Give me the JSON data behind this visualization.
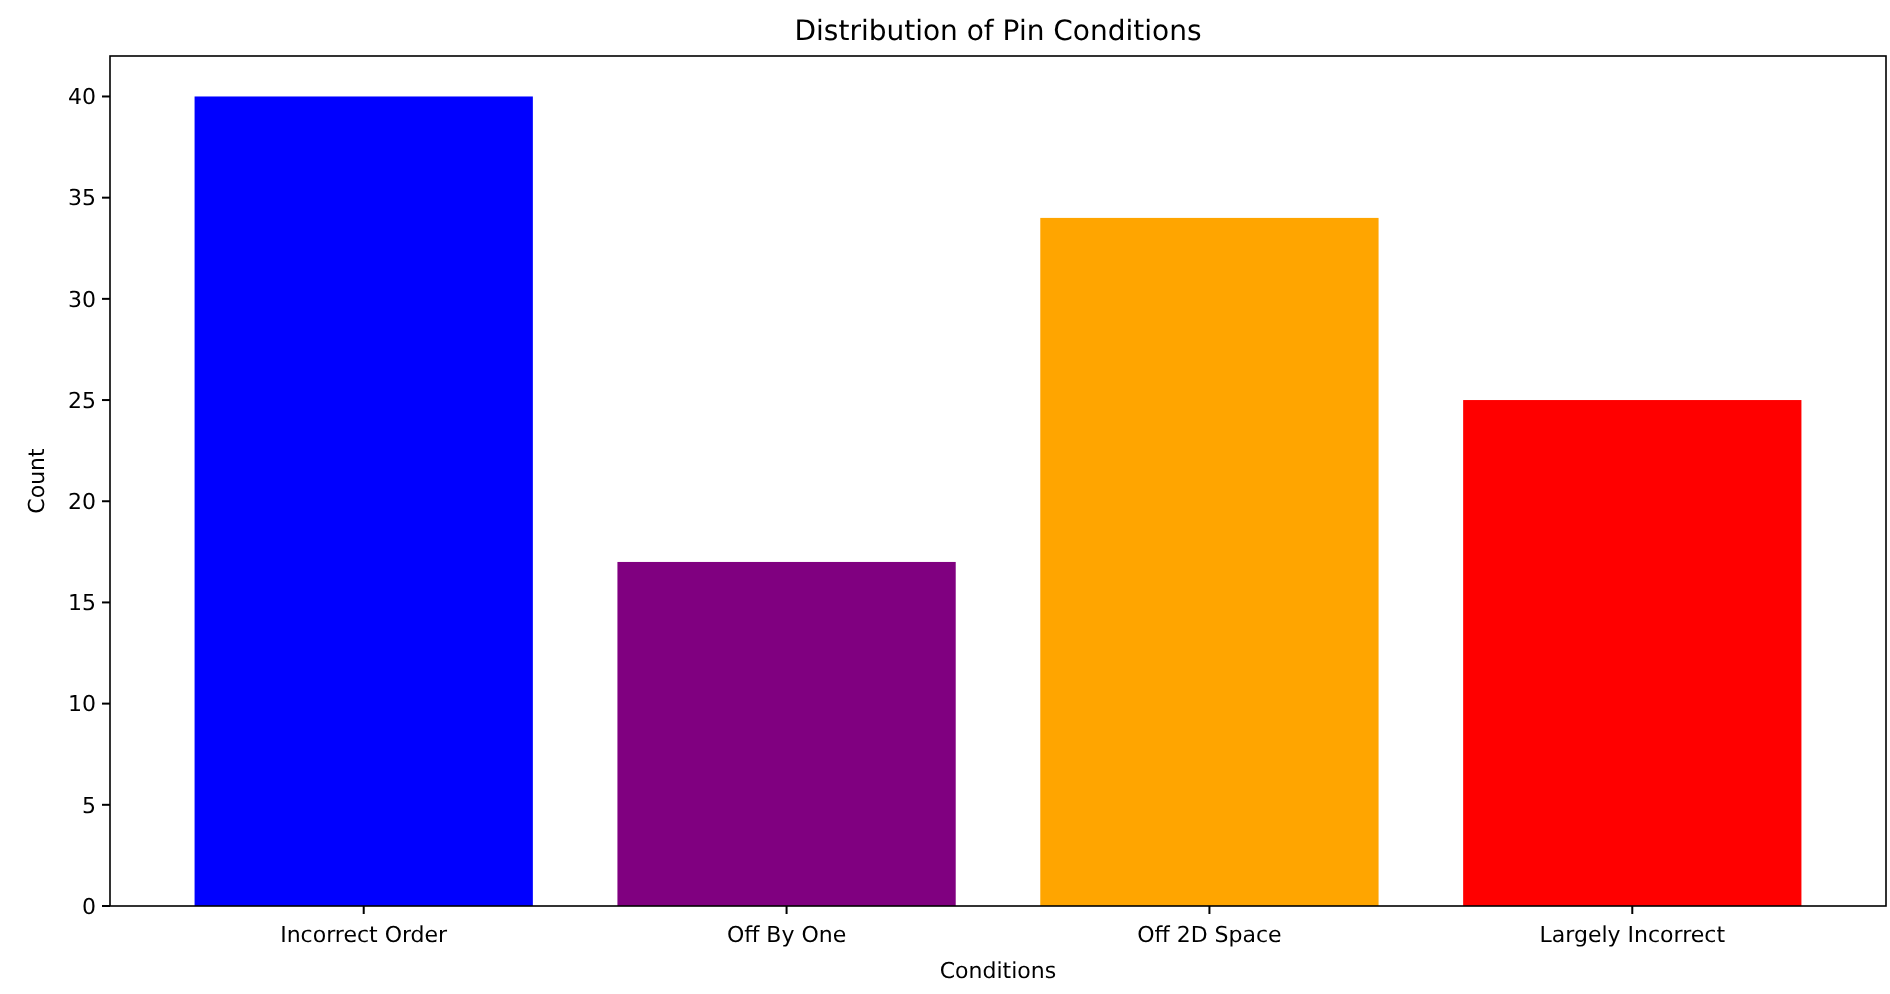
{
  "chart_data": {
    "type": "bar",
    "title": "Distribution of Pin Conditions",
    "xlabel": "Conditions",
    "ylabel": "Count",
    "categories": [
      "Incorrect Order",
      "Off By One",
      "Off 2D Space",
      "Largely Incorrect"
    ],
    "values": [
      40,
      17,
      34,
      25
    ],
    "colors": [
      "#0000ff",
      "#800080",
      "#ffa500",
      "#ff0000"
    ],
    "ylim": [
      0,
      42
    ],
    "yticks": [
      0,
      5,
      10,
      15,
      20,
      25,
      30,
      35,
      40
    ],
    "grid": false
  }
}
